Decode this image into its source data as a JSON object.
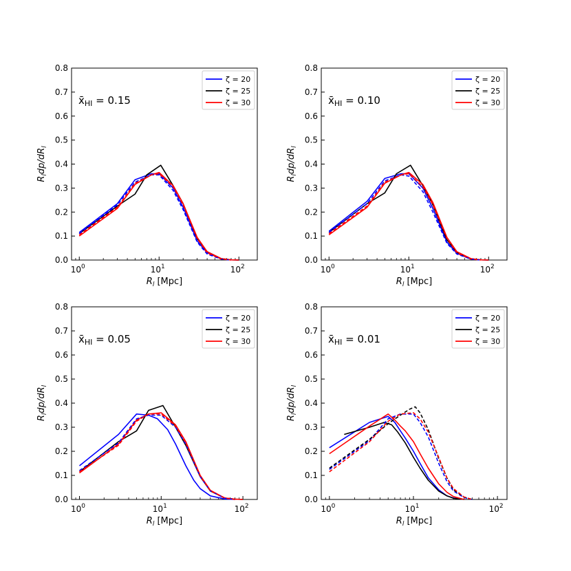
{
  "figure": {
    "title": ""
  },
  "chart_data": [
    {
      "type": "line",
      "annotation": "x̄HI = 0.15",
      "xlabel": "R_l [Mpc]",
      "ylabel": "R_l dp/dR_l",
      "xscale": "log",
      "xlim": [
        0.8,
        170
      ],
      "ylim": [
        0,
        0.8
      ],
      "xticks": [
        "10^0",
        "10^1",
        "10^2"
      ],
      "yticks": [
        "0.0",
        "0.1",
        "0.2",
        "0.3",
        "0.4",
        "0.5",
        "0.6",
        "0.7",
        "0.8"
      ],
      "legend": {
        "position": "top-right",
        "entries": [
          "ζ = 20",
          "ζ = 25",
          "ζ = 30"
        ]
      },
      "series": [
        {
          "name": "ζ = 20",
          "color": "#0000ff",
          "style": "solid",
          "x": [
            1,
            3,
            5,
            8,
            10,
            15,
            20,
            30,
            40,
            60,
            80,
            100
          ],
          "y": [
            0.115,
            0.235,
            0.335,
            0.36,
            0.36,
            0.3,
            0.22,
            0.08,
            0.03,
            0.005,
            0.001,
            0.0
          ]
        },
        {
          "name": "ζ = 25",
          "color": "#000000",
          "style": "solid",
          "x": [
            1,
            3,
            5,
            7,
            10.5,
            15,
            20,
            30,
            40,
            60,
            80,
            100
          ],
          "y": [
            0.11,
            0.225,
            0.275,
            0.355,
            0.395,
            0.31,
            0.235,
            0.09,
            0.035,
            0.006,
            0.001,
            0.0
          ]
        },
        {
          "name": "ζ = 30",
          "color": "#ff0000",
          "style": "solid",
          "x": [
            1,
            3,
            5,
            8,
            10,
            15,
            20,
            30,
            40,
            60,
            80,
            100
          ],
          "y": [
            0.1,
            0.215,
            0.315,
            0.355,
            0.365,
            0.31,
            0.235,
            0.095,
            0.035,
            0.006,
            0.001,
            0.0
          ]
        },
        {
          "name": "",
          "color": "#0000ff",
          "style": "dashed",
          "x": [
            1,
            3,
            5,
            8,
            10,
            15,
            20,
            30,
            40,
            60,
            80
          ],
          "y": [
            0.11,
            0.23,
            0.325,
            0.355,
            0.355,
            0.29,
            0.21,
            0.075,
            0.025,
            0.004,
            0.0
          ]
        },
        {
          "name": "",
          "color": "#ff0000",
          "style": "dashed",
          "x": [
            1,
            3,
            5,
            8,
            10,
            15,
            20,
            30,
            40,
            60,
            80
          ],
          "y": [
            0.105,
            0.22,
            0.32,
            0.355,
            0.36,
            0.305,
            0.23,
            0.09,
            0.03,
            0.005,
            0.0
          ]
        }
      ]
    },
    {
      "type": "line",
      "annotation": "x̄HI = 0.10",
      "xlabel": "R_l [Mpc]",
      "ylabel": "R_l dp/dR_l",
      "xscale": "log",
      "xlim": [
        0.8,
        170
      ],
      "ylim": [
        0,
        0.8
      ],
      "xticks": [
        "10^0",
        "10^1",
        "10^2"
      ],
      "yticks": [
        "0.0",
        "0.1",
        "0.2",
        "0.3",
        "0.4",
        "0.5",
        "0.6",
        "0.7",
        "0.8"
      ],
      "legend": {
        "position": "top-right",
        "entries": [
          "ζ = 20",
          "ζ = 25",
          "ζ = 30"
        ]
      },
      "series": [
        {
          "name": "ζ = 20",
          "color": "#0000ff",
          "style": "solid",
          "x": [
            1,
            3,
            5,
            8,
            10,
            15,
            20,
            30,
            40,
            60,
            80,
            100
          ],
          "y": [
            0.12,
            0.245,
            0.34,
            0.36,
            0.36,
            0.3,
            0.215,
            0.075,
            0.028,
            0.004,
            0.001,
            0.0
          ]
        },
        {
          "name": "ζ = 25",
          "color": "#000000",
          "style": "solid",
          "x": [
            1,
            3,
            5,
            7,
            10.5,
            15,
            20,
            30,
            40,
            60,
            80,
            100
          ],
          "y": [
            0.115,
            0.235,
            0.28,
            0.36,
            0.395,
            0.31,
            0.23,
            0.085,
            0.032,
            0.005,
            0.001,
            0.0
          ]
        },
        {
          "name": "ζ = 30",
          "color": "#ff0000",
          "style": "solid",
          "x": [
            1,
            3,
            5,
            8,
            10,
            15,
            20,
            30,
            40,
            60,
            80,
            100
          ],
          "y": [
            0.105,
            0.22,
            0.32,
            0.355,
            0.365,
            0.315,
            0.24,
            0.095,
            0.035,
            0.006,
            0.001,
            0.0
          ]
        },
        {
          "name": "",
          "color": "#0000ff",
          "style": "dashed",
          "x": [
            1,
            3,
            5,
            8,
            10,
            15,
            20,
            30,
            40,
            60,
            80
          ],
          "y": [
            0.115,
            0.235,
            0.33,
            0.355,
            0.35,
            0.285,
            0.2,
            0.07,
            0.025,
            0.004,
            0.0
          ]
        },
        {
          "name": "",
          "color": "#ff0000",
          "style": "dashed",
          "x": [
            1,
            3,
            5,
            8,
            10,
            15,
            20,
            30,
            40,
            60,
            80
          ],
          "y": [
            0.11,
            0.225,
            0.325,
            0.355,
            0.36,
            0.305,
            0.23,
            0.09,
            0.03,
            0.005,
            0.0
          ]
        }
      ]
    },
    {
      "type": "line",
      "annotation": "x̄HI = 0.05",
      "xlabel": "R_l [Mpc]",
      "ylabel": "R_l dp/dR_l",
      "xscale": "log",
      "xlim": [
        0.8,
        150
      ],
      "ylim": [
        0,
        0.8
      ],
      "xticks": [
        "10^0",
        "10^1",
        "10^2"
      ],
      "yticks": [
        "0.0",
        "0.1",
        "0.2",
        "0.3",
        "0.4",
        "0.5",
        "0.6",
        "0.7",
        "0.8"
      ],
      "legend": {
        "position": "top-right",
        "entries": [
          "ζ = 20",
          "ζ = 25",
          "ζ = 30"
        ]
      },
      "series": [
        {
          "name": "ζ = 20",
          "color": "#0000ff",
          "style": "solid",
          "x": [
            1,
            3,
            5,
            7,
            9,
            12,
            15,
            20,
            25,
            30,
            40,
            60,
            80
          ],
          "y": [
            0.14,
            0.27,
            0.355,
            0.35,
            0.335,
            0.29,
            0.23,
            0.14,
            0.08,
            0.045,
            0.015,
            0.002,
            0.0
          ]
        },
        {
          "name": "ζ = 25",
          "color": "#000000",
          "style": "solid",
          "x": [
            1,
            3,
            5,
            7,
            10.5,
            15,
            20,
            30,
            40,
            60,
            80,
            100
          ],
          "y": [
            0.115,
            0.24,
            0.285,
            0.37,
            0.39,
            0.3,
            0.225,
            0.095,
            0.035,
            0.006,
            0.001,
            0.0
          ]
        },
        {
          "name": "ζ = 30",
          "color": "#ff0000",
          "style": "solid",
          "x": [
            1,
            3,
            5,
            7,
            10,
            15,
            20,
            30,
            40,
            60,
            80,
            100
          ],
          "y": [
            0.11,
            0.23,
            0.33,
            0.355,
            0.36,
            0.31,
            0.24,
            0.1,
            0.038,
            0.006,
            0.001,
            0.0
          ]
        },
        {
          "name": "",
          "color": "#0000ff",
          "style": "dashed",
          "x": [
            1,
            3,
            5,
            7,
            10,
            15,
            20,
            30,
            40,
            60,
            80
          ],
          "y": [
            0.12,
            0.235,
            0.335,
            0.35,
            0.35,
            0.3,
            0.23,
            0.095,
            0.035,
            0.005,
            0.0
          ]
        },
        {
          "name": "",
          "color": "#ff0000",
          "style": "dashed",
          "x": [
            1,
            3,
            5,
            7,
            10,
            15,
            20,
            30,
            40,
            60,
            80
          ],
          "y": [
            0.115,
            0.225,
            0.325,
            0.355,
            0.355,
            0.305,
            0.235,
            0.098,
            0.036,
            0.006,
            0.0
          ]
        }
      ]
    },
    {
      "type": "line",
      "annotation": "x̄HI = 0.01",
      "xlabel": "R_l [Mpc]",
      "ylabel": "R_l dp/dR_l",
      "xscale": "log",
      "xlim": [
        0.8,
        130
      ],
      "ylim": [
        0,
        0.8
      ],
      "xticks": [
        "10^0",
        "10^1",
        "10^2"
      ],
      "yticks": [
        "0.0",
        "0.1",
        "0.2",
        "0.3",
        "0.4",
        "0.5",
        "0.6",
        "0.7",
        "0.8"
      ],
      "legend": {
        "position": "top-right",
        "entries": [
          "ζ = 20",
          "ζ = 25",
          "ζ = 30"
        ]
      },
      "series": [
        {
          "name": "ζ = 20",
          "color": "#0000ff",
          "style": "solid",
          "x": [
            1,
            3,
            5,
            6,
            7,
            8,
            10,
            12,
            15,
            20,
            25,
            30,
            40
          ],
          "y": [
            0.215,
            0.32,
            0.345,
            0.32,
            0.285,
            0.255,
            0.2,
            0.15,
            0.09,
            0.04,
            0.015,
            0.006,
            0.0
          ]
        },
        {
          "name": "ζ = 25",
          "color": "#000000",
          "style": "solid",
          "x": [
            1.5,
            3,
            4.5,
            5.5,
            6.5,
            8,
            10,
            12,
            15,
            20,
            25,
            30,
            40
          ],
          "y": [
            0.27,
            0.3,
            0.32,
            0.31,
            0.28,
            0.235,
            0.175,
            0.13,
            0.08,
            0.035,
            0.015,
            0.005,
            0.0
          ]
        },
        {
          "name": "ζ = 30",
          "color": "#ff0000",
          "style": "solid",
          "x": [
            1,
            3,
            5,
            6,
            7,
            8,
            10,
            12,
            15,
            20,
            25,
            30,
            40
          ],
          "y": [
            0.19,
            0.305,
            0.355,
            0.33,
            0.305,
            0.285,
            0.24,
            0.19,
            0.13,
            0.065,
            0.03,
            0.012,
            0.0
          ]
        },
        {
          "name": "",
          "color": "#0000ff",
          "style": "dashed",
          "x": [
            1,
            3,
            5,
            7,
            10,
            12,
            15,
            20,
            25,
            30,
            40,
            50
          ],
          "y": [
            0.125,
            0.245,
            0.335,
            0.355,
            0.355,
            0.32,
            0.26,
            0.15,
            0.075,
            0.035,
            0.008,
            0.0
          ]
        },
        {
          "name": "",
          "color": "#000000",
          "style": "dashed",
          "x": [
            1,
            3,
            5,
            7,
            9,
            10.5,
            12,
            15,
            20,
            25,
            30,
            40,
            50
          ],
          "y": [
            0.13,
            0.25,
            0.315,
            0.35,
            0.375,
            0.385,
            0.36,
            0.29,
            0.17,
            0.09,
            0.04,
            0.01,
            0.0
          ]
        },
        {
          "name": "",
          "color": "#ff0000",
          "style": "dashed",
          "x": [
            1,
            3,
            5,
            7,
            10,
            12,
            15,
            20,
            25,
            30,
            40,
            50
          ],
          "y": [
            0.115,
            0.24,
            0.325,
            0.355,
            0.36,
            0.335,
            0.28,
            0.175,
            0.09,
            0.045,
            0.01,
            0.0
          ]
        }
      ]
    }
  ]
}
